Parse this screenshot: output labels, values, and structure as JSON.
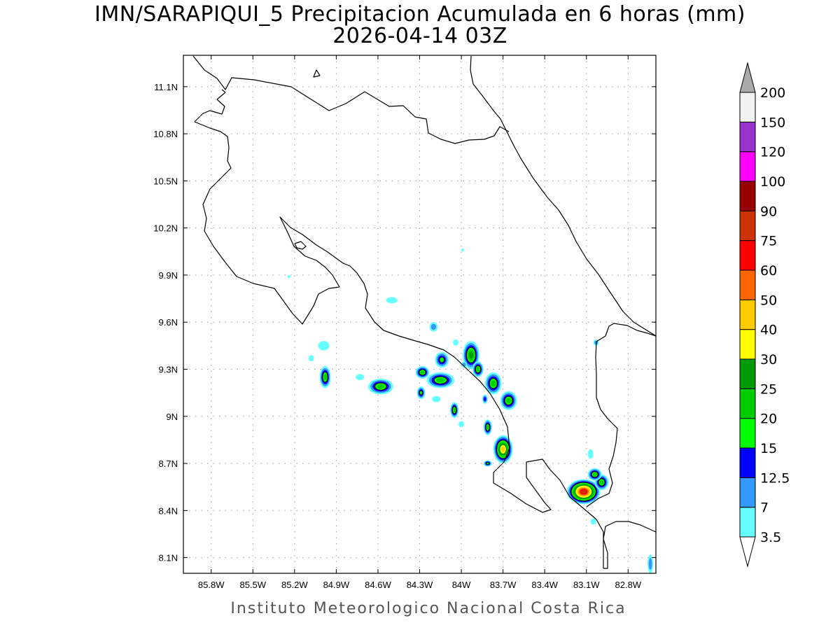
{
  "title": {
    "line1": "IMN/SARAPIQUI_5 Precipitacion Acumulada en 6 horas (mm)",
    "line2": "2026-04-14 03Z"
  },
  "footer": "Instituto Meteorologico Nacional Costa Rica",
  "map": {
    "lon_range": [
      -86.0,
      -82.6
    ],
    "lat_range": [
      8.0,
      11.3
    ],
    "grid": true,
    "x_ticks": [
      {
        "value": -85.8,
        "label": "85.8W"
      },
      {
        "value": -85.5,
        "label": "85.5W"
      },
      {
        "value": -85.2,
        "label": "85.2W"
      },
      {
        "value": -84.9,
        "label": "84.9W"
      },
      {
        "value": -84.6,
        "label": "84.6W"
      },
      {
        "value": -84.3,
        "label": "84.3W"
      },
      {
        "value": -84.0,
        "label": "84W"
      },
      {
        "value": -83.7,
        "label": "83.7W"
      },
      {
        "value": -83.4,
        "label": "83.4W"
      },
      {
        "value": -83.1,
        "label": "83.1W"
      },
      {
        "value": -82.8,
        "label": "82.8W"
      }
    ],
    "y_ticks": [
      {
        "value": 8.1,
        "label": "8.1N"
      },
      {
        "value": 8.4,
        "label": "8.4N"
      },
      {
        "value": 8.7,
        "label": "8.7N"
      },
      {
        "value": 9.0,
        "label": "9N"
      },
      {
        "value": 9.3,
        "label": "9.3N"
      },
      {
        "value": 9.6,
        "label": "9.6N"
      },
      {
        "value": 9.9,
        "label": "9.9N"
      },
      {
        "value": 10.2,
        "label": "10.2N"
      },
      {
        "value": 10.5,
        "label": "10.5N"
      },
      {
        "value": 10.8,
        "label": "10.8N"
      },
      {
        "value": 11.1,
        "label": "11.1N"
      }
    ]
  },
  "colorbar": {
    "levels": [
      {
        "label": "3.5",
        "color": "#66ffff"
      },
      {
        "label": "7",
        "color": "#3399ff"
      },
      {
        "label": "12.5",
        "color": "#0000ff"
      },
      {
        "label": "15",
        "color": "#00ff00"
      },
      {
        "label": "20",
        "color": "#00cc00"
      },
      {
        "label": "25",
        "color": "#009900"
      },
      {
        "label": "30",
        "color": "#ffff00"
      },
      {
        "label": "40",
        "color": "#ffcc00"
      },
      {
        "label": "50",
        "color": "#ff6600"
      },
      {
        "label": "60",
        "color": "#ff0000"
      },
      {
        "label": "75",
        "color": "#cc3300"
      },
      {
        "label": "90",
        "color": "#990000"
      },
      {
        "label": "100",
        "color": "#ff00ff"
      },
      {
        "label": "120",
        "color": "#9933cc"
      },
      {
        "label": "150",
        "color": "#f2f2f2"
      },
      {
        "label": "200",
        "color": ""
      }
    ],
    "over_color": "#aaaaaa",
    "under_color": "#ffffff"
  },
  "chart_data": {
    "type": "heatmap",
    "title": "IMN/SARAPIQUI_5 Precipitacion Acumulada en 6 horas (mm)",
    "subtitle": "2026-04-14 03Z",
    "units": "mm",
    "xlim": [
      -86.0,
      -82.6
    ],
    "ylim": [
      8.0,
      11.3
    ],
    "grid": true,
    "precip_cells": [
      {
        "lon": -84.98,
        "lat": 9.25,
        "rx": 0.04,
        "ry": 0.07,
        "value": 22
      },
      {
        "lon": -84.99,
        "lat": 9.45,
        "rx": 0.04,
        "ry": 0.03,
        "value": 4
      },
      {
        "lon": -85.08,
        "lat": 9.37,
        "rx": 0.02,
        "ry": 0.02,
        "value": 4
      },
      {
        "lon": -84.58,
        "lat": 9.19,
        "rx": 0.09,
        "ry": 0.05,
        "value": 22
      },
      {
        "lon": -84.73,
        "lat": 9.25,
        "rx": 0.03,
        "ry": 0.02,
        "value": 5
      },
      {
        "lon": -84.28,
        "lat": 9.28,
        "rx": 0.05,
        "ry": 0.04,
        "value": 22
      },
      {
        "lon": -84.29,
        "lat": 9.15,
        "rx": 0.03,
        "ry": 0.04,
        "value": 18
      },
      {
        "lon": -84.15,
        "lat": 9.23,
        "rx": 0.1,
        "ry": 0.05,
        "value": 22
      },
      {
        "lon": -84.14,
        "lat": 9.36,
        "rx": 0.05,
        "ry": 0.05,
        "value": 16
      },
      {
        "lon": -84.2,
        "lat": 9.57,
        "rx": 0.03,
        "ry": 0.03,
        "value": 8
      },
      {
        "lon": -84.05,
        "lat": 9.04,
        "rx": 0.03,
        "ry": 0.05,
        "value": 20
      },
      {
        "lon": -84.18,
        "lat": 9.11,
        "rx": 0.03,
        "ry": 0.02,
        "value": 4
      },
      {
        "lon": -84.0,
        "lat": 8.95,
        "rx": 0.02,
        "ry": 0.02,
        "value": 4
      },
      {
        "lon": -83.93,
        "lat": 9.39,
        "rx": 0.06,
        "ry": 0.09,
        "value": 27
      },
      {
        "lon": -83.88,
        "lat": 9.3,
        "rx": 0.04,
        "ry": 0.05,
        "value": 22
      },
      {
        "lon": -84.04,
        "lat": 9.47,
        "rx": 0.02,
        "ry": 0.02,
        "value": 4
      },
      {
        "lon": -83.98,
        "lat": 9.33,
        "rx": 0.02,
        "ry": 0.02,
        "value": 8
      },
      {
        "lon": -83.77,
        "lat": 9.21,
        "rx": 0.06,
        "ry": 0.07,
        "value": 24
      },
      {
        "lon": -83.66,
        "lat": 9.1,
        "rx": 0.06,
        "ry": 0.06,
        "value": 22
      },
      {
        "lon": -83.81,
        "lat": 8.93,
        "rx": 0.03,
        "ry": 0.05,
        "value": 22
      },
      {
        "lon": -83.83,
        "lat": 9.11,
        "rx": 0.02,
        "ry": 0.03,
        "value": 14
      },
      {
        "lon": -83.7,
        "lat": 8.79,
        "rx": 0.07,
        "ry": 0.09,
        "value": 45
      },
      {
        "lon": -83.81,
        "lat": 8.7,
        "rx": 0.03,
        "ry": 0.02,
        "value": 18
      },
      {
        "lon": -83.12,
        "lat": 8.52,
        "rx": 0.12,
        "ry": 0.08,
        "value": 75
      },
      {
        "lon": -82.99,
        "lat": 8.58,
        "rx": 0.05,
        "ry": 0.05,
        "value": 22
      },
      {
        "lon": -83.04,
        "lat": 8.63,
        "rx": 0.05,
        "ry": 0.04,
        "value": 22
      },
      {
        "lon": -83.07,
        "lat": 8.76,
        "rx": 0.02,
        "ry": 0.03,
        "value": 4
      },
      {
        "lon": -83.05,
        "lat": 8.33,
        "rx": 0.02,
        "ry": 0.02,
        "value": 4
      },
      {
        "lon": -83.03,
        "lat": 9.47,
        "rx": 0.02,
        "ry": 0.02,
        "value": 8
      },
      {
        "lon": -82.64,
        "lat": 8.06,
        "rx": 0.02,
        "ry": 0.06,
        "value": 9
      },
      {
        "lon": -84.5,
        "lat": 9.74,
        "rx": 0.04,
        "ry": 0.02,
        "value": 4
      },
      {
        "lon": -83.99,
        "lat": 10.06,
        "rx": 0.01,
        "ry": 0.01,
        "value": 4
      },
      {
        "lon": -85.24,
        "lat": 9.89,
        "rx": 0.01,
        "ry": 0.01,
        "value": 4
      }
    ]
  }
}
